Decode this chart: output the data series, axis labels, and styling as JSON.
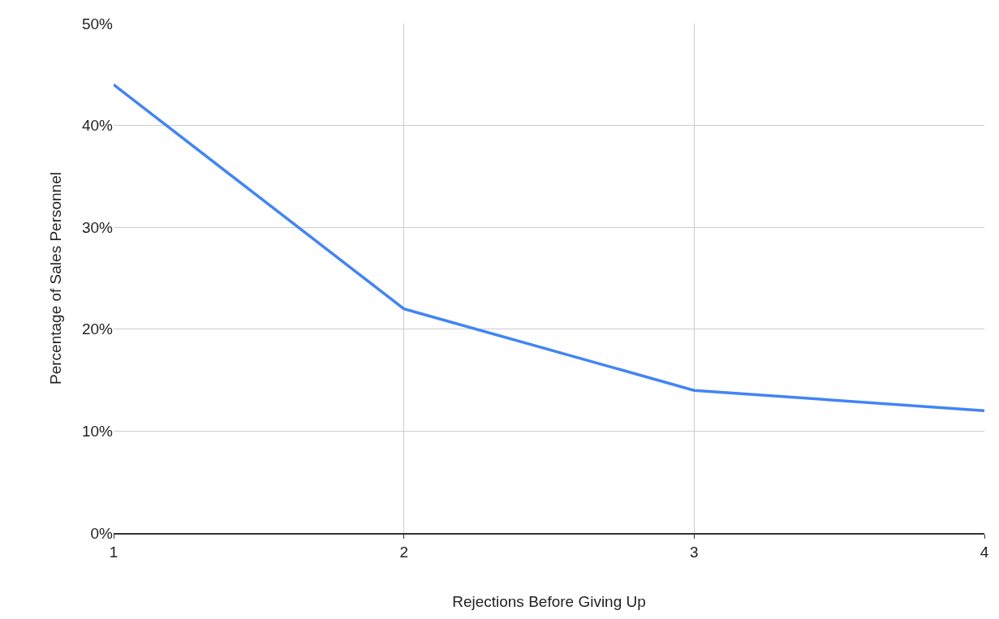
{
  "chart_data": {
    "type": "line",
    "xlabel": "Rejections Before Giving Up",
    "ylabel": "Percentage of Sales Personnel",
    "x": [
      1,
      2,
      3,
      4
    ],
    "series": [
      {
        "color": "#4285f4",
        "values": [
          44,
          22,
          14,
          12
        ]
      }
    ],
    "xlim": [
      1,
      4
    ],
    "xticks": [
      1,
      2,
      3,
      4
    ],
    "ylim": [
      0,
      50
    ],
    "yticks": [
      {
        "value": 0,
        "label": "0%"
      },
      {
        "value": 10,
        "label": "10%"
      },
      {
        "value": 20,
        "label": "20%"
      },
      {
        "value": 30,
        "label": "30%"
      },
      {
        "value": 40,
        "label": "40%"
      },
      {
        "value": 50,
        "label": "50%"
      }
    ],
    "grid": true,
    "marker": "none",
    "line_style": "solid"
  }
}
